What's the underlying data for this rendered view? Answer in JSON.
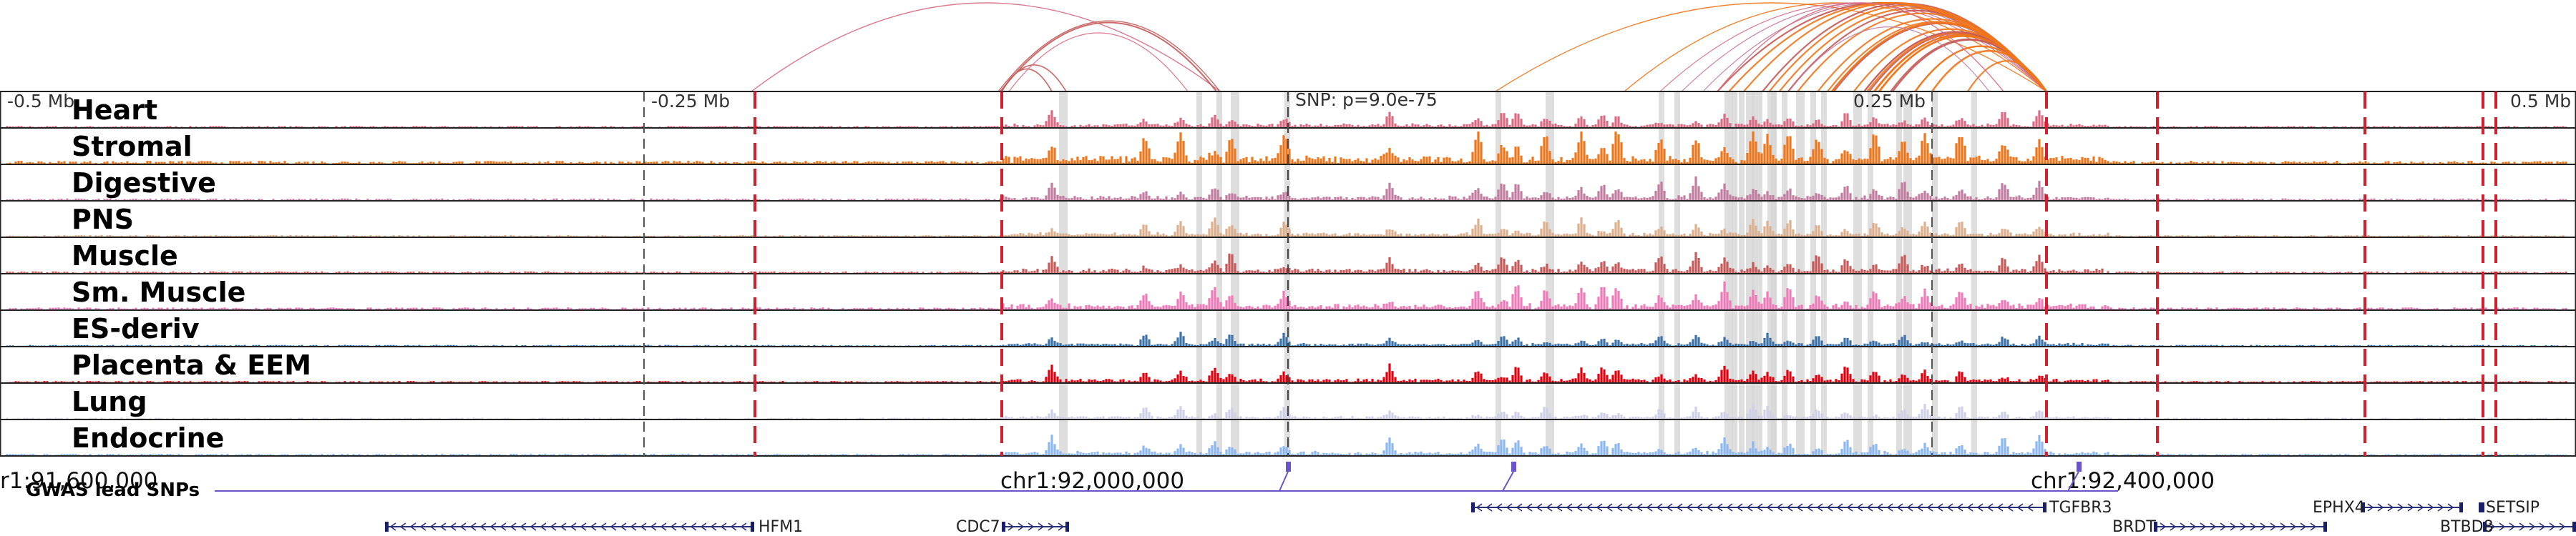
{
  "browser": {
    "scale_labels": [
      "-0.5 Mb",
      "-0.25 Mb",
      "0.25 Mb",
      "0.5 Mb"
    ],
    "snp_label": "SNP: p=9.0e-75",
    "coordinates": [
      "r1:91,600,000",
      "chr1:92,000,000",
      "chr1:92,400,000"
    ],
    "tracks": [
      {
        "name": "Heart",
        "color": "#d86c84"
      },
      {
        "name": "Stromal",
        "color": "#f0761c"
      },
      {
        "name": "Digestive",
        "color": "#c07da0"
      },
      {
        "name": "PNS",
        "color": "#dcb08e"
      },
      {
        "name": "Muscle",
        "color": "#c45a5a"
      },
      {
        "name": "Sm. Muscle",
        "color": "#f07ab8"
      },
      {
        "name": "ES-deriv",
        "color": "#3d72a8"
      },
      {
        "name": "Placenta & EEM",
        "color": "#e3000f"
      },
      {
        "name": "Lung",
        "color": "#cfcfe6"
      },
      {
        "name": "Endocrine",
        "color": "#8db7f0"
      }
    ],
    "gwas_label": "GWAS lead SNPs",
    "gwas_color": "#6a55c8",
    "genes": [
      "HFM1",
      "CDC7",
      "TGFBR3",
      "BRDT",
      "EPHX4",
      "SETSIP",
      "BTBD8"
    ],
    "marker_color": "#d31f2e"
  }
}
